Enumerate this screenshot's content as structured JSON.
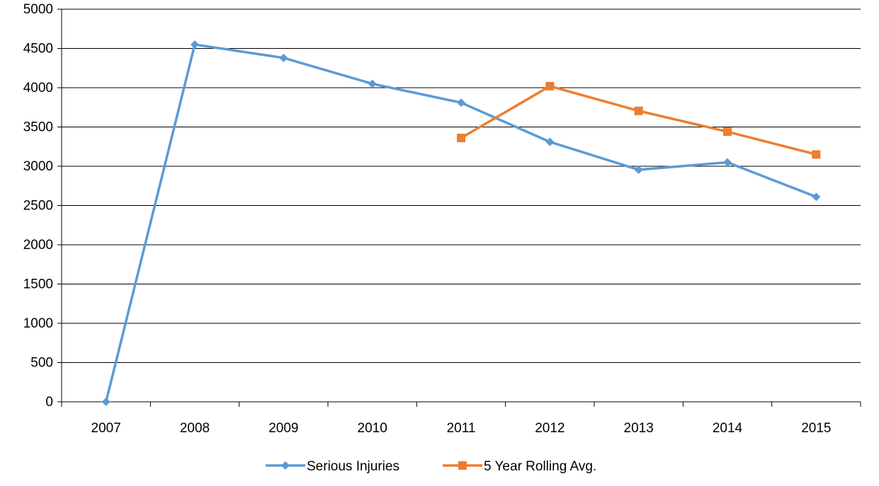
{
  "chart_data": {
    "type": "line",
    "title": "",
    "xlabel": "",
    "ylabel": "",
    "categories": [
      "2007",
      "2008",
      "2009",
      "2010",
      "2011",
      "2012",
      "2013",
      "2014",
      "2015"
    ],
    "ylim": [
      0,
      5000
    ],
    "yticks": [
      "0",
      "500",
      "1000",
      "1500",
      "2000",
      "2500",
      "3000",
      "3500",
      "4000",
      "4500",
      "5000"
    ],
    "grid": "horizontal",
    "legend_position": "bottom",
    "series": [
      {
        "name": "Serious Injuries",
        "color": "#5B9BD5",
        "marker": "diamond",
        "values": [
          0,
          4550,
          4380,
          4050,
          3810,
          3310,
          2955,
          3050,
          2610
        ]
      },
      {
        "name": "5 Year Rolling Avg.",
        "color": "#ED7D31",
        "marker": "square",
        "values": [
          null,
          null,
          null,
          null,
          3360,
          4020,
          3705,
          3440,
          3150
        ]
      }
    ]
  }
}
